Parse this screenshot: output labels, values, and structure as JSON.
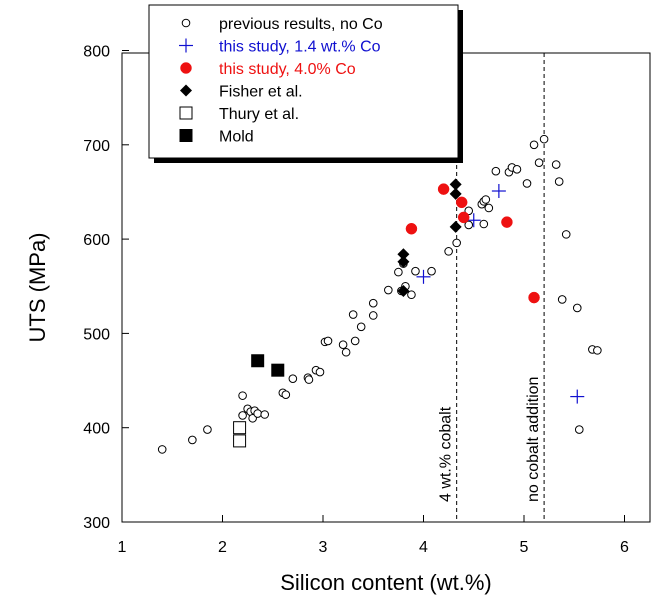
{
  "chart_data": {
    "type": "scatter",
    "title": "",
    "xlabel": "Silicon content (wt.%)",
    "ylabel": "UTS (MPa)",
    "xlim": [
      1,
      6.4
    ],
    "ylim": [
      300,
      800
    ],
    "xticks": [
      1,
      2,
      3,
      4,
      5,
      6
    ],
    "yticks": [
      300,
      400,
      500,
      600,
      700,
      800
    ],
    "grid": false,
    "legend_position": "top-left",
    "colors": {
      "blue": "#1010d0",
      "red": "#ee1111",
      "black": "#000000"
    },
    "series": [
      {
        "name": "previous results, no Co",
        "marker": "open-circle",
        "color": "#000000",
        "points": [
          [
            1.4,
            377
          ],
          [
            1.7,
            387
          ],
          [
            1.85,
            398
          ],
          [
            2.2,
            434
          ],
          [
            2.2,
            413
          ],
          [
            2.25,
            420
          ],
          [
            2.28,
            417
          ],
          [
            2.3,
            410
          ],
          [
            2.32,
            418
          ],
          [
            2.35,
            415
          ],
          [
            2.42,
            414
          ],
          [
            2.6,
            437
          ],
          [
            2.63,
            435
          ],
          [
            2.7,
            452
          ],
          [
            2.85,
            453
          ],
          [
            2.86,
            451
          ],
          [
            2.93,
            461
          ],
          [
            2.97,
            459
          ],
          [
            3.02,
            491
          ],
          [
            3.05,
            492
          ],
          [
            3.2,
            488
          ],
          [
            3.23,
            480
          ],
          [
            3.3,
            520
          ],
          [
            3.32,
            492
          ],
          [
            3.38,
            507
          ],
          [
            3.5,
            532
          ],
          [
            3.5,
            519
          ],
          [
            3.65,
            546
          ],
          [
            3.75,
            565
          ],
          [
            3.78,
            545
          ],
          [
            3.8,
            574
          ],
          [
            3.82,
            550
          ],
          [
            3.88,
            541
          ],
          [
            3.92,
            566
          ],
          [
            4.08,
            566
          ],
          [
            4.25,
            587
          ],
          [
            4.33,
            596
          ],
          [
            4.4,
            622
          ],
          [
            4.45,
            630
          ],
          [
            4.45,
            615
          ],
          [
            4.58,
            637
          ],
          [
            4.6,
            616
          ],
          [
            4.6,
            640
          ],
          [
            4.62,
            642
          ],
          [
            4.65,
            633
          ],
          [
            4.72,
            672
          ],
          [
            4.85,
            671
          ],
          [
            4.88,
            676
          ],
          [
            4.93,
            674
          ],
          [
            5.03,
            659
          ],
          [
            5.1,
            700
          ],
          [
            5.15,
            681
          ],
          [
            5.2,
            706
          ],
          [
            5.32,
            679
          ],
          [
            5.35,
            661
          ],
          [
            5.38,
            536
          ],
          [
            5.42,
            605
          ],
          [
            5.53,
            527
          ],
          [
            5.55,
            398
          ],
          [
            5.68,
            483
          ],
          [
            5.73,
            482
          ]
        ]
      },
      {
        "name": "this study,  1.4 wt.% Co",
        "marker": "plus",
        "color": "#1010d0",
        "points": [
          [
            4.0,
            560
          ],
          [
            4.5,
            620
          ],
          [
            4.75,
            651
          ],
          [
            5.53,
            433
          ]
        ]
      },
      {
        "name": "this study, 4.0% Co",
        "marker": "filled-circle",
        "color": "#ee1111",
        "points": [
          [
            3.88,
            611
          ],
          [
            4.2,
            653
          ],
          [
            4.38,
            639
          ],
          [
            4.4,
            623
          ],
          [
            4.83,
            618
          ],
          [
            5.1,
            538
          ]
        ]
      },
      {
        "name": "Fisher et al.",
        "marker": "filled-diamond",
        "color": "#000000",
        "points": [
          [
            3.8,
            584
          ],
          [
            3.8,
            576
          ],
          [
            3.8,
            545
          ],
          [
            4.32,
            658
          ],
          [
            4.32,
            648
          ],
          [
            4.32,
            613
          ]
        ]
      },
      {
        "name": "Thury et al.",
        "marker": "open-square",
        "color": "#000000",
        "points": [
          [
            2.17,
            400
          ],
          [
            2.17,
            386
          ]
        ]
      },
      {
        "name": "Mold",
        "marker": "filled-square",
        "color": "#000000",
        "points": [
          [
            2.35,
            471
          ],
          [
            2.55,
            461
          ]
        ]
      }
    ],
    "reference_lines": [
      {
        "x": 4.33,
        "label": "4 wt.% cobalt"
      },
      {
        "x": 5.2,
        "label": "no cobalt addition"
      }
    ]
  }
}
